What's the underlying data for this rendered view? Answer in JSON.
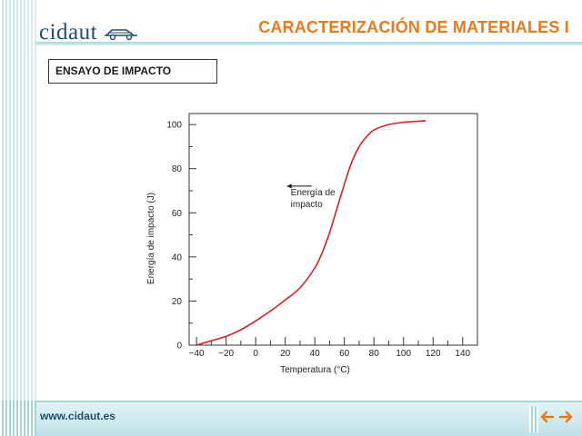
{
  "header": {
    "logo_text": "cidaut",
    "title": "CARACTERIZACIÓN DE MATERIALES I"
  },
  "section": {
    "label": "ENSAYO DE IMPACTO"
  },
  "footer": {
    "url": "www.cidaut.es",
    "prev_icon": "arrow-left-icon",
    "next_icon": "arrow-right-icon"
  },
  "colors": {
    "accent": "#e87a1e",
    "brand": "#1f4f6d",
    "curve": "#d81f26",
    "stripe": "#c7e6ea"
  },
  "chart_data": {
    "type": "line",
    "xlabel": "Temperatura (°C)",
    "ylabel": "Energía de impacto (J)",
    "xlim": [
      -45,
      150
    ],
    "ylim": [
      0,
      105
    ],
    "xticks": [
      -40,
      -20,
      0,
      20,
      40,
      60,
      80,
      100,
      120,
      140
    ],
    "yticks": [
      0,
      20,
      40,
      60,
      80,
      100
    ],
    "grid": false,
    "annotation": {
      "lines": [
        "Energía de",
        "impacto"
      ],
      "x": 20,
      "y": 68,
      "arrow_to": 38
    },
    "series": [
      {
        "color": "#d81f26",
        "x": [
          -40,
          -30,
          -20,
          -10,
          0,
          10,
          20,
          30,
          40,
          45,
          50,
          55,
          60,
          65,
          70,
          75,
          80,
          90,
          100,
          110,
          115
        ],
        "y": [
          0,
          2,
          4,
          7,
          11,
          15.5,
          20.5,
          26,
          35,
          42,
          51,
          62,
          73,
          83,
          90,
          94.5,
          97.5,
          100,
          101,
          101.5,
          101.8
        ]
      }
    ]
  }
}
